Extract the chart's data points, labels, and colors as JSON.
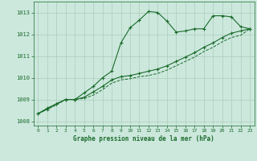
{
  "title": "Graphe pression niveau de la mer (hPa)",
  "bg_color": "#cce8dd",
  "grid_color": "#aaccbb",
  "line_color": "#1a6b2a",
  "xlim": [
    -0.5,
    23.5
  ],
  "ylim": [
    1007.8,
    1013.5
  ],
  "yticks": [
    1008,
    1009,
    1010,
    1011,
    1012,
    1013
  ],
  "xticks": [
    0,
    1,
    2,
    3,
    4,
    5,
    6,
    7,
    8,
    9,
    10,
    11,
    12,
    13,
    14,
    15,
    16,
    17,
    18,
    19,
    20,
    21,
    22,
    23
  ],
  "line1_x": [
    0,
    1,
    2,
    3,
    4,
    5,
    6,
    7,
    8,
    9,
    10,
    11,
    12,
    13,
    14,
    15,
    16,
    17,
    18,
    19,
    20,
    21,
    22,
    23
  ],
  "line1_y": [
    1008.35,
    1008.6,
    1008.8,
    1009.0,
    1009.0,
    1009.3,
    1009.6,
    1010.0,
    1010.3,
    1011.6,
    1012.3,
    1012.65,
    1013.05,
    1013.0,
    1012.6,
    1012.1,
    1012.15,
    1012.25,
    1012.25,
    1012.85,
    1012.85,
    1012.8,
    1012.35,
    1012.25
  ],
  "line2_x": [
    0,
    1,
    2,
    3,
    4,
    5,
    6,
    7,
    8,
    9,
    10,
    11,
    12,
    13,
    14,
    15,
    16,
    17,
    18,
    19,
    20,
    21,
    22,
    23
  ],
  "line2_y": [
    1008.35,
    1008.55,
    1008.8,
    1009.0,
    1009.0,
    1009.1,
    1009.35,
    1009.6,
    1009.9,
    1010.05,
    1010.1,
    1010.2,
    1010.3,
    1010.4,
    1010.55,
    1010.75,
    1010.95,
    1011.15,
    1011.4,
    1011.6,
    1011.85,
    1012.05,
    1012.15,
    1012.25
  ],
  "line3_x": [
    0,
    1,
    2,
    3,
    4,
    5,
    6,
    7,
    8,
    9,
    10,
    11,
    12,
    13,
    14,
    15,
    16,
    17,
    18,
    19,
    20,
    21,
    22,
    23
  ],
  "line3_y": [
    1008.35,
    1008.55,
    1008.75,
    1009.0,
    1009.0,
    1009.05,
    1009.2,
    1009.45,
    1009.75,
    1009.9,
    1009.95,
    1010.05,
    1010.1,
    1010.2,
    1010.35,
    1010.55,
    1010.75,
    1010.95,
    1011.2,
    1011.4,
    1011.65,
    1011.85,
    1011.95,
    1012.25
  ]
}
